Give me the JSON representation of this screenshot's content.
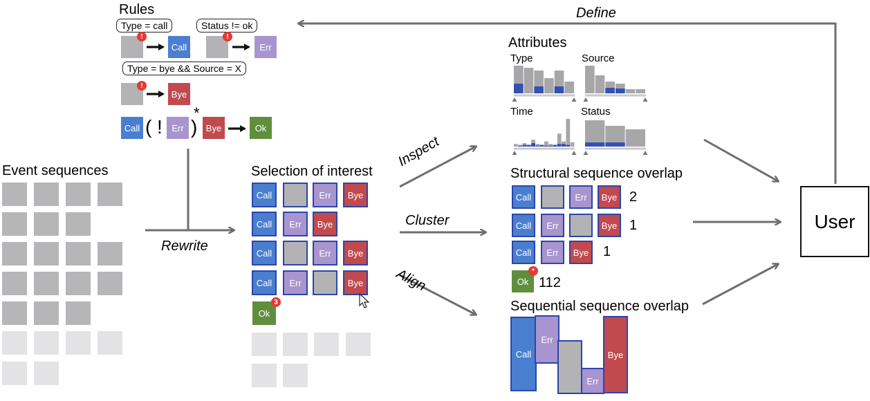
{
  "labels": {
    "rules": "Rules",
    "event_sequences": "Event sequences",
    "selection_of_interest": "Selection of interest",
    "attributes": "Attributes",
    "structural_overlap": "Structural sequence overlap",
    "sequential_overlap": "Sequential sequence overlap",
    "user": "User"
  },
  "actions": {
    "define": "Define",
    "rewrite": "Rewrite",
    "inspect": "Inspect",
    "cluster": "Cluster",
    "align": "Align"
  },
  "event_types": {
    "call": "Call",
    "err": "Err",
    "bye": "Bye",
    "ok": "Ok"
  },
  "rules": {
    "r1_condition": "Type = call",
    "r2_condition": "Status != ok",
    "r3_condition": "Type = bye && Source = X",
    "pattern_open": "(",
    "pattern_not": "!",
    "pattern_close": ")",
    "pattern_star": "*"
  },
  "warning_badge": "!",
  "selection": {
    "ok_badge": "3"
  },
  "attributes": {
    "type_label": "Type",
    "source_label": "Source",
    "time_label": "Time",
    "status_label": "Status",
    "histograms": {
      "type": {
        "total": [
          40,
          37,
          33,
          22,
          33,
          17
        ],
        "selected": [
          14,
          0,
          10,
          0,
          10,
          0
        ]
      },
      "source": {
        "total": [
          40,
          26,
          17,
          14,
          6,
          6
        ],
        "selected": [
          0,
          0,
          8,
          7,
          0,
          0
        ]
      },
      "time": {
        "total": [
          3,
          2,
          4,
          2,
          8,
          3,
          2,
          6,
          3,
          2,
          15,
          6,
          32,
          5
        ],
        "selected": [
          0,
          1,
          2,
          2,
          4,
          1,
          2,
          1,
          1,
          2,
          3,
          3,
          2,
          0
        ]
      },
      "status": {
        "total": [
          38,
          30,
          25
        ],
        "selected": [
          6,
          6,
          0
        ]
      }
    }
  },
  "structural": {
    "row1_count": "2",
    "row2_count": "1",
    "row3_count": "1",
    "ok_count": "112",
    "ok_badge": "*"
  },
  "colors": {
    "call": "#4a7fd0",
    "err": "#a895cf",
    "bye": "#c14a4f",
    "ok": "#5f8f3c",
    "blank": "#b3b3b6",
    "bar_total": "#a7a7aa",
    "bar_selected": "#3550b0",
    "arrow": "#6e6e6e"
  },
  "icons": {
    "warning": "warning-icon",
    "cursor": "cursor-icon"
  }
}
